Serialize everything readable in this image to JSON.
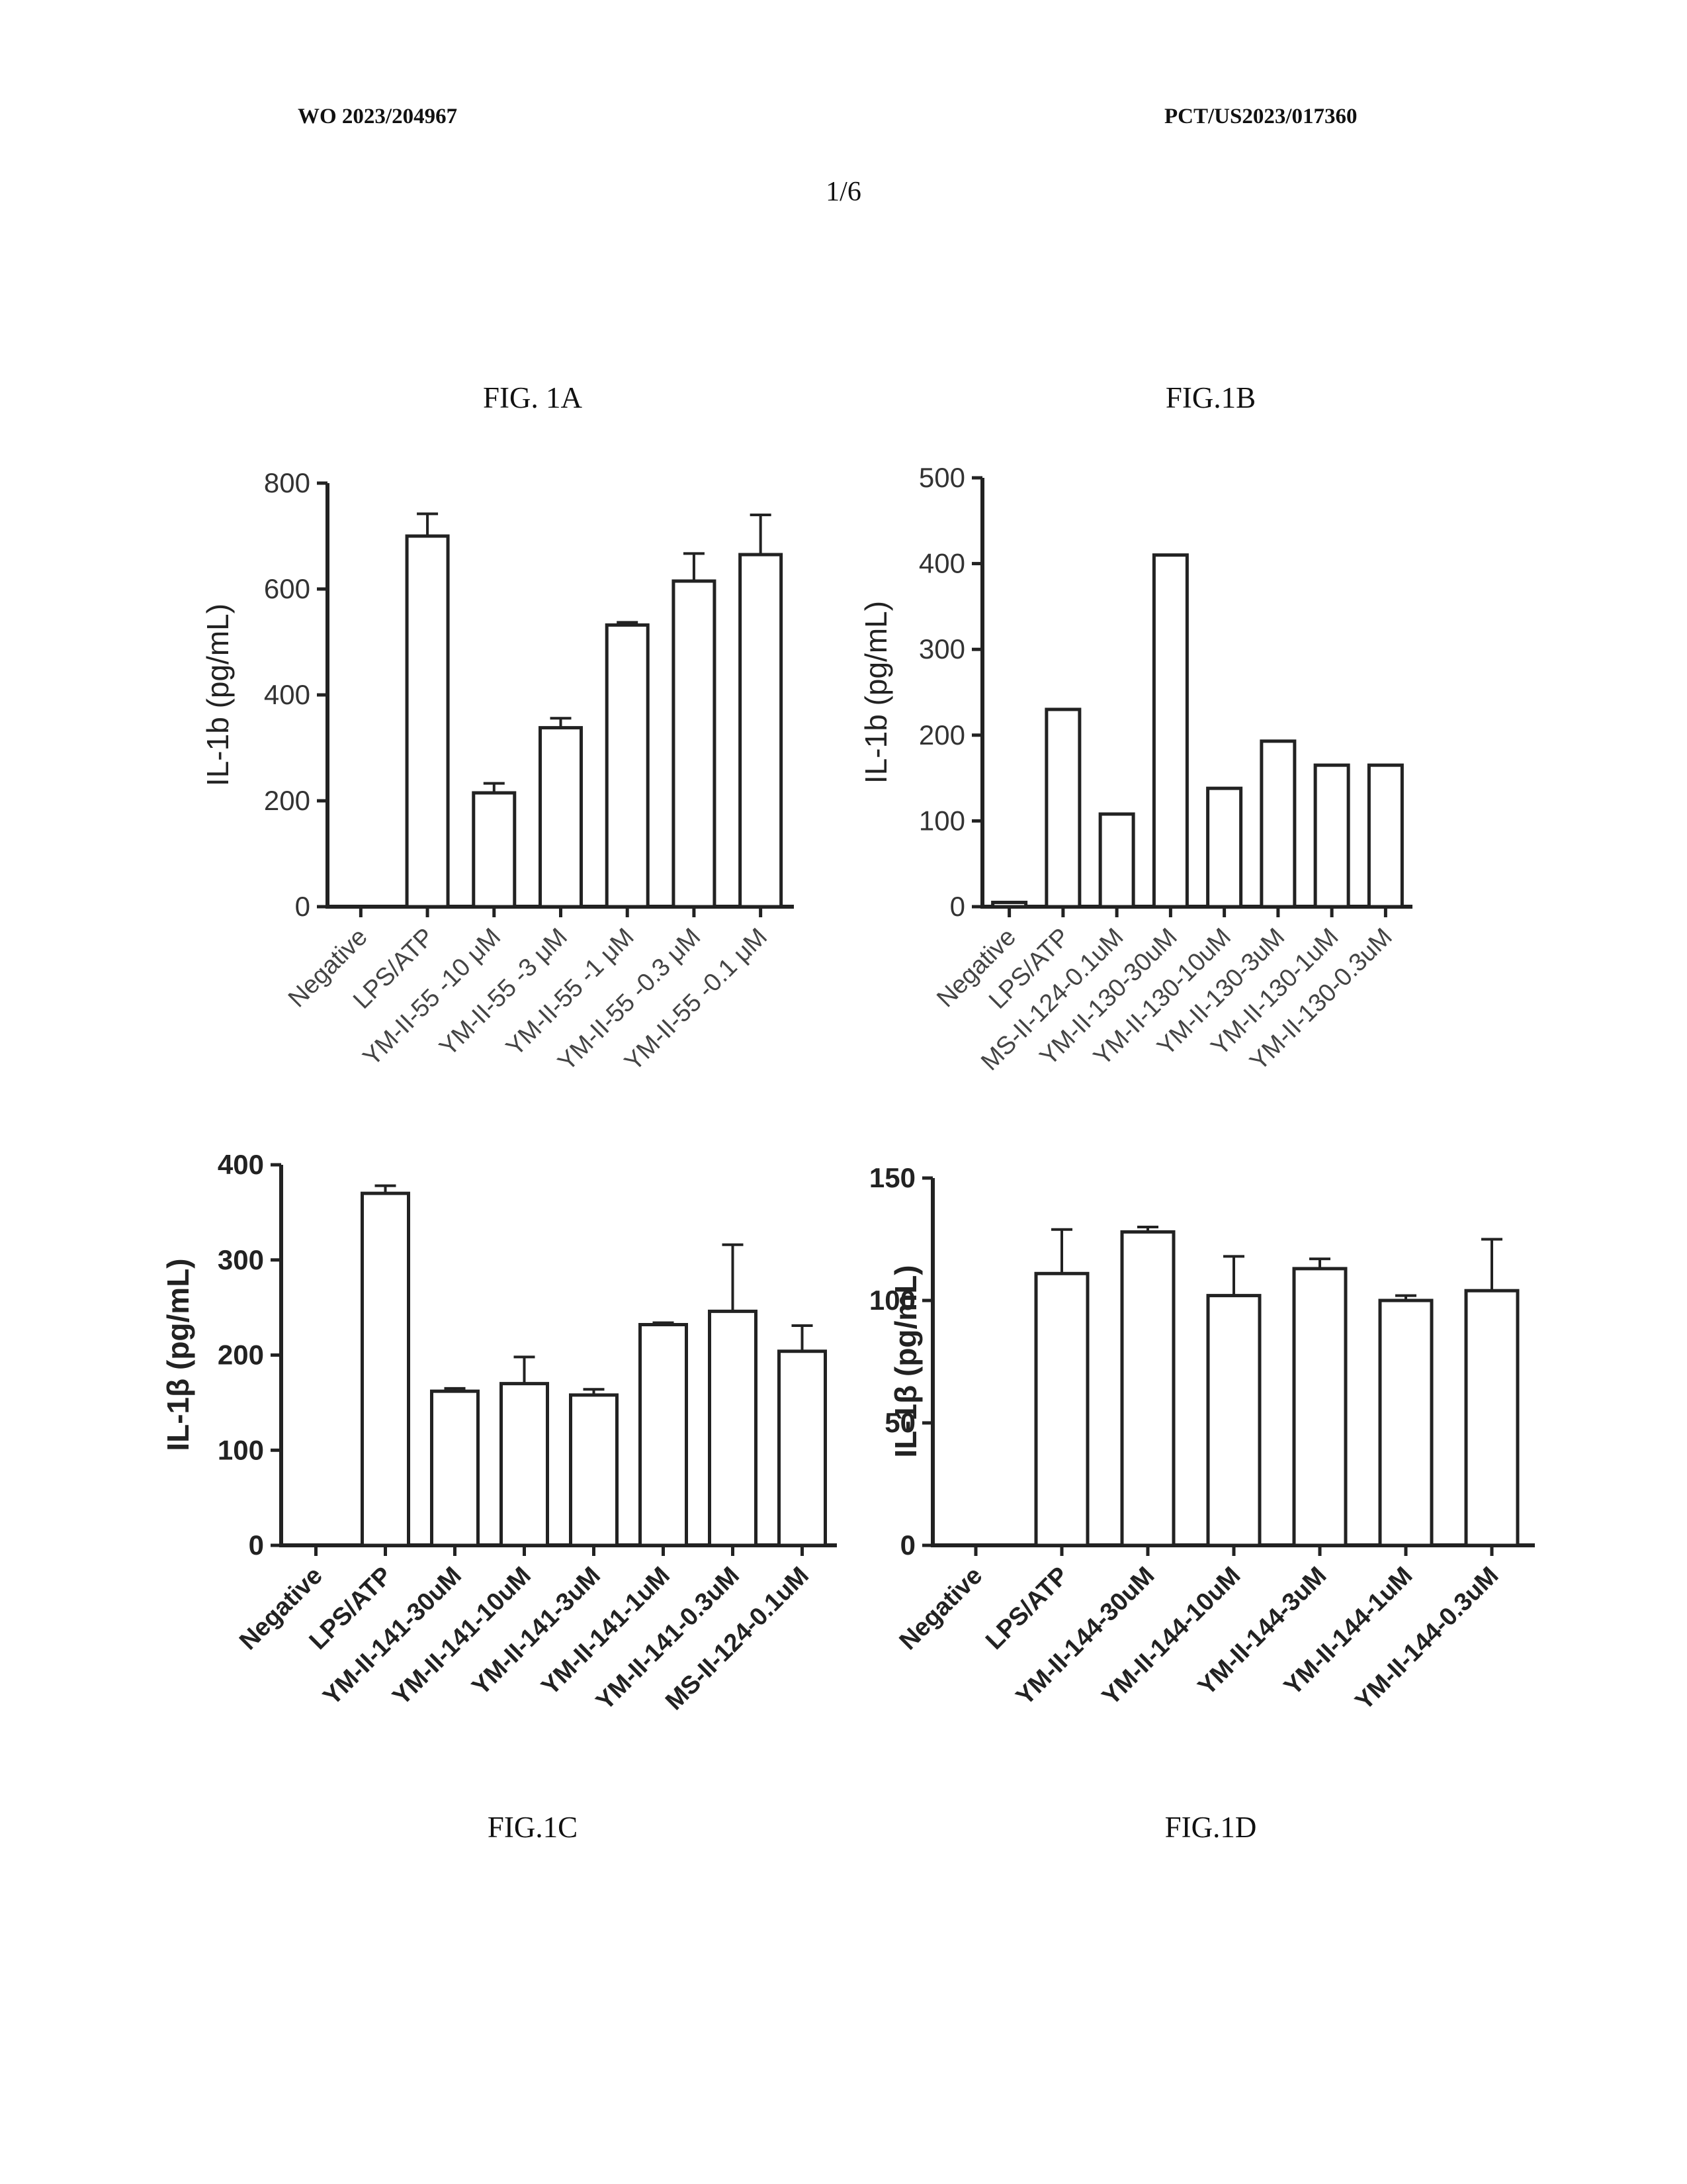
{
  "header": {
    "left": "WO 2023/204967",
    "right": "PCT/US2023/017360",
    "page": "1/6"
  },
  "figures": {
    "a": "FIG. 1A",
    "b": "FIG.1B",
    "c": "FIG.1C",
    "d": "FIG.1D"
  },
  "chart_data": [
    {
      "type": "bar",
      "figure": "FIG. 1A",
      "ylabel": "IL-1b (pg/mL)",
      "ylim": [
        0,
        800
      ],
      "yticks": [
        0,
        200,
        400,
        600,
        800
      ],
      "categories": [
        "Negative",
        "LPS/ATP",
        "YM-II-55 -10 μM",
        "YM-II-55 -3 μM",
        "YM-II-55 -1 μM",
        "YM-II-55 -0.3 μM",
        "YM-II-55 -0.1 μM"
      ],
      "values": [
        0,
        700,
        215,
        338,
        532,
        615,
        665
      ],
      "errors": [
        0,
        42,
        18,
        18,
        5,
        52,
        75
      ]
    },
    {
      "type": "bar",
      "figure": "FIG.1B",
      "ylabel": "IL-1b (pg/mL)",
      "ylim": [
        0,
        500
      ],
      "yticks": [
        0,
        100,
        200,
        300,
        400,
        500
      ],
      "categories": [
        "Negative",
        "LPS/ATP",
        "MS-II-124-0.1uM",
        "YM-II-130-30uM",
        "YM-II-130-10uM",
        "YM-II-130-3uM",
        "YM-II-130-1uM",
        "YM-II-130-0.3uM"
      ],
      "values": [
        5,
        230,
        108,
        410,
        138,
        193,
        165,
        165
      ],
      "errors": [
        0,
        0,
        0,
        0,
        0,
        0,
        0,
        0
      ]
    },
    {
      "type": "bar",
      "figure": "FIG.1C",
      "ylabel": "IL-1β (pg/mL)",
      "ylim": [
        0,
        400
      ],
      "yticks": [
        0,
        100,
        200,
        300,
        400
      ],
      "categories": [
        "Negative",
        "LPS/ATP",
        "YM-II-141-30uM",
        "YM-II-141-10uM",
        "YM-II-141-3uM",
        "YM-II-141-1uM",
        "YM-II-141-0.3uM",
        "MS-II-124-0.1uM"
      ],
      "values": [
        0,
        370,
        162,
        170,
        158,
        232,
        246,
        204
      ],
      "errors": [
        0,
        8,
        3,
        28,
        6,
        2,
        70,
        27
      ]
    },
    {
      "type": "bar",
      "figure": "FIG.1D",
      "ylabel": "IL-1β (pg/mL)",
      "ylim": [
        0,
        150
      ],
      "yticks": [
        0,
        50,
        100,
        150
      ],
      "categories": [
        "Negative",
        "LPS/ATP",
        "YM-II-144-30uM",
        "YM-II-144-10uM",
        "YM-II-144-3uM",
        "YM-II-144-1uM",
        "YM-II-144-0.3uM"
      ],
      "values": [
        0,
        111,
        128,
        102,
        113,
        100,
        104
      ],
      "errors": [
        0,
        18,
        2,
        16,
        4,
        2,
        21
      ]
    }
  ]
}
